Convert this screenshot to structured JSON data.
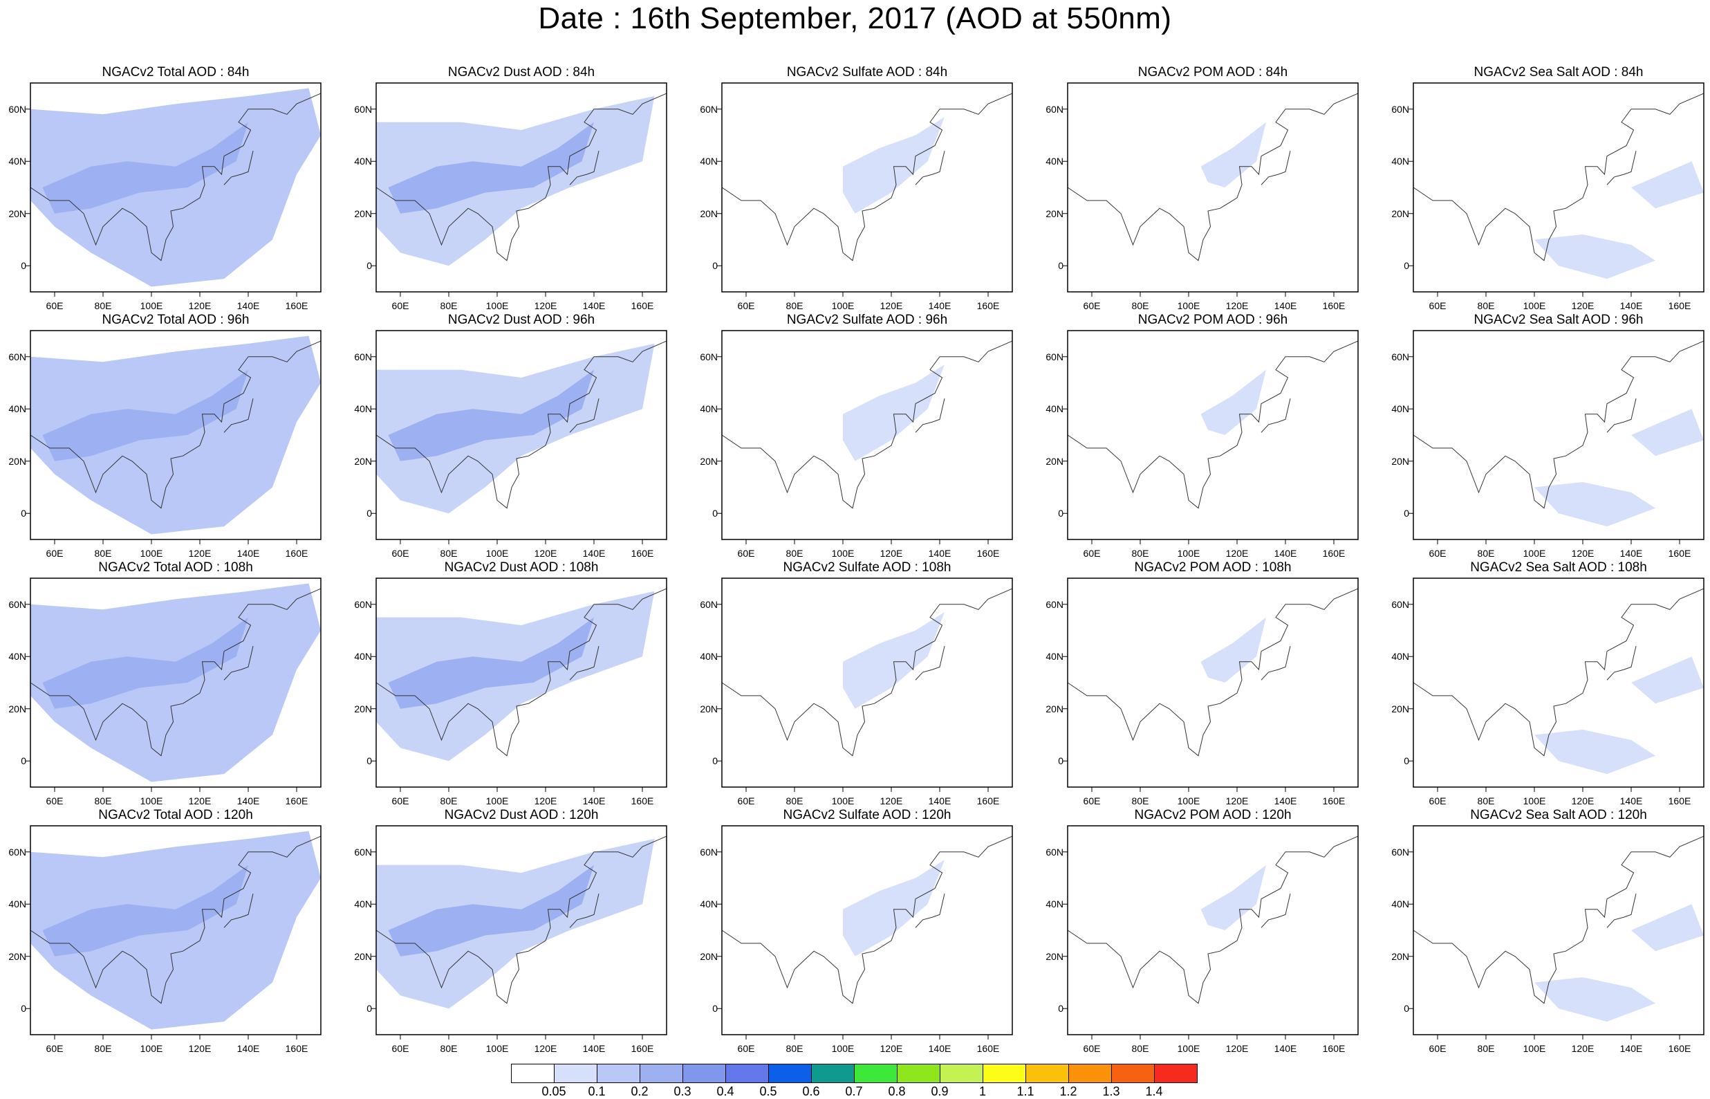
{
  "title": "Date : 16th September, 2017 (AOD at 550nm)",
  "axes": {
    "y_ticks": [
      "60N",
      "40N",
      "20N",
      "0"
    ],
    "y_values": [
      60,
      40,
      20,
      0
    ],
    "x_ticks": [
      "60E",
      "80E",
      "100E",
      "120E",
      "140E",
      "160E"
    ],
    "x_values": [
      60,
      80,
      100,
      120,
      140,
      160
    ],
    "lon_range": [
      50,
      170
    ],
    "lat_range": [
      -10,
      70
    ]
  },
  "panels": [
    [
      "NGACv2 Total AOD : 84h",
      "NGACv2 Dust AOD : 84h",
      "NGACv2 Sulfate AOD : 84h",
      "NGACv2 POM AOD : 84h",
      "NGACv2 Sea Salt AOD : 84h"
    ],
    [
      "NGACv2 Total AOD : 96h",
      "NGACv2 Dust AOD : 96h",
      "NGACv2 Sulfate AOD : 96h",
      "NGACv2 POM AOD : 96h",
      "NGACv2 Sea Salt AOD : 96h"
    ],
    [
      "NGACv2 Total AOD : 108h",
      "NGACv2 Dust AOD : 108h",
      "NGACv2 Sulfate AOD : 108h",
      "NGACv2 POM AOD : 108h",
      "NGACv2 Sea Salt AOD : 108h"
    ],
    [
      "NGACv2 Total AOD : 120h",
      "NGACv2 Dust AOD : 120h",
      "NGACv2 Sulfate AOD : 120h",
      "NGACv2 POM AOD : 120h",
      "NGACv2 Sea Salt  AOD : 120h"
    ]
  ],
  "colorbar": {
    "labels": [
      "0.05",
      "0.1",
      "0.2",
      "0.3",
      "0.4",
      "0.5",
      "0.6",
      "0.7",
      "0.8",
      "0.9",
      "1",
      "1.1",
      "1.2",
      "1.3",
      "1.4"
    ],
    "colors": [
      "#ffffff",
      "#d6e0fa",
      "#b9c8f6",
      "#9cb0f2",
      "#7f98ee",
      "#6378ea",
      "#0b5fe8",
      "#0f9a8e",
      "#3ee83b",
      "#8ee61c",
      "#c4f252",
      "#fdfd1a",
      "#fbc10a",
      "#f99208",
      "#f76210",
      "#f62a1f"
    ]
  }
}
